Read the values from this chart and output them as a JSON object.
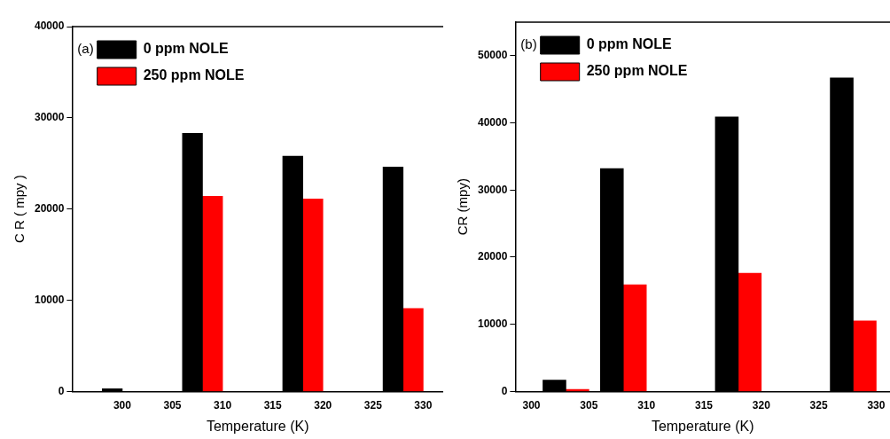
{
  "chart_data": [
    {
      "type": "bar",
      "xlabel": "Temperature (K)",
      "ylabel": "C R ( mpy )",
      "annotations": [
        "(a)"
      ],
      "legend": "top left",
      "xlim": [
        295,
        332
      ],
      "xticks": [
        300,
        305,
        310,
        315,
        320,
        325,
        330
      ],
      "ylim": [
        0,
        40000
      ],
      "yticks": [
        0,
        10000,
        20000,
        30000,
        40000
      ],
      "series": [
        {
          "name": "0 ppm NOLE",
          "color": "#000000",
          "x": [
            299,
            307,
            317,
            327
          ],
          "values": [
            300,
            28300,
            25800,
            24600
          ]
        },
        {
          "name": "250 ppm NOLE",
          "color": "#ff0000",
          "x": [
            309,
            319,
            329
          ],
          "values": [
            21400,
            21100,
            9100
          ]
        }
      ]
    },
    {
      "type": "bar",
      "xlabel": "Temperature (K)",
      "ylabel": "CR (mpy)",
      "annotations": [
        "(b)"
      ],
      "legend": "top left",
      "xlim": [
        298.6,
        331.2
      ],
      "xticks": [
        300,
        305,
        310,
        315,
        320,
        325,
        330
      ],
      "ylim": [
        0,
        55000
      ],
      "yticks": [
        0,
        10000,
        20000,
        30000,
        40000,
        50000
      ],
      "series": [
        {
          "name": "0 ppm NOLE",
          "color": "#000000",
          "x": [
            302,
            307,
            317,
            327
          ],
          "values": [
            1700,
            33200,
            40900,
            46700
          ]
        },
        {
          "name": "250 ppm NOLE",
          "color": "#ff0000",
          "x": [
            304,
            309,
            319,
            329
          ],
          "values": [
            300,
            15900,
            17600,
            10500
          ]
        }
      ]
    }
  ]
}
